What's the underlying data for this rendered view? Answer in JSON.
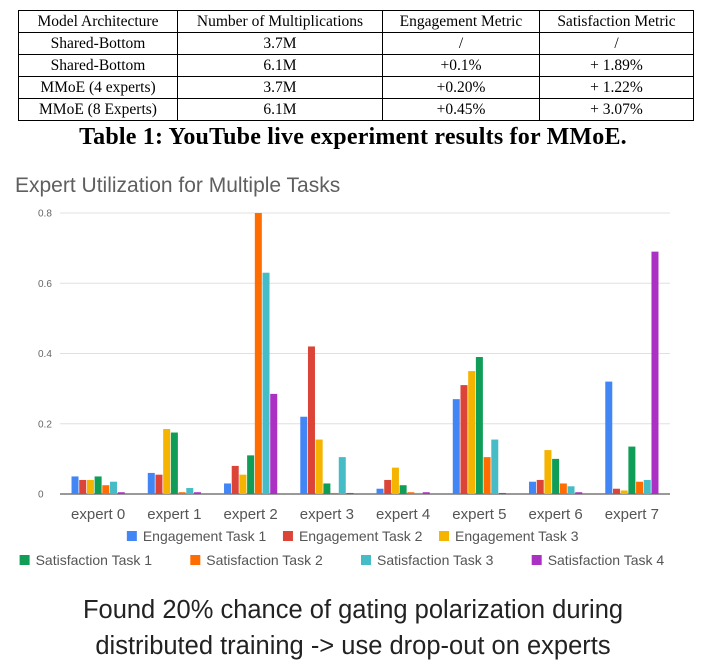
{
  "table": {
    "headers": [
      "Model Architecture",
      "Number of Multiplications",
      "Engagement Metric",
      "Satisfaction Metric"
    ],
    "rows": [
      [
        "Shared-Bottom",
        "3.7M",
        "/",
        "/"
      ],
      [
        "Shared-Bottom",
        "6.1M",
        "+0.1%",
        "+ 1.89%"
      ],
      [
        "MMoE (4 experts)",
        "3.7M",
        "+0.20%",
        "+ 1.22%"
      ],
      [
        "MMoE (8 Experts)",
        "6.1M",
        "+0.45%",
        "+ 3.07%"
      ]
    ],
    "caption": "Table 1: YouTube live experiment results for MMoE."
  },
  "chart_data": {
    "type": "bar",
    "title": "Expert Utilization for Multiple Tasks",
    "categories": [
      "expert 0",
      "expert 1",
      "expert 2",
      "expert 3",
      "expert 4",
      "expert 5",
      "expert 6",
      "expert 7"
    ],
    "ylim": [
      0,
      0.8
    ],
    "yticks": [
      "0",
      "0.2",
      "0.4",
      "0.6",
      "0.8"
    ],
    "grid": true,
    "legend_position": "bottom",
    "series": [
      {
        "name": "Engagement Task 1",
        "color": "#4285f4",
        "values": [
          0.05,
          0.06,
          0.03,
          0.22,
          0.015,
          0.27,
          0.035,
          0.32
        ]
      },
      {
        "name": "Engagement Task 2",
        "color": "#db4437",
        "values": [
          0.04,
          0.055,
          0.08,
          0.42,
          0.04,
          0.31,
          0.04,
          0.015
        ]
      },
      {
        "name": "Engagement Task 3",
        "color": "#f4b400",
        "values": [
          0.04,
          0.185,
          0.055,
          0.155,
          0.075,
          0.35,
          0.125,
          0.01
        ]
      },
      {
        "name": "Satisfaction Task 1",
        "color": "#0f9d58",
        "values": [
          0.05,
          0.175,
          0.11,
          0.03,
          0.025,
          0.39,
          0.1,
          0.135
        ]
      },
      {
        "name": "Satisfaction Task 2",
        "color": "#ff6d00",
        "values": [
          0.025,
          0.005,
          0.8,
          0.003,
          0.005,
          0.105,
          0.03,
          0.035
        ]
      },
      {
        "name": "Satisfaction Task 3",
        "color": "#46bdc6",
        "values": [
          0.035,
          0.017,
          0.63,
          0.105,
          0.003,
          0.155,
          0.022,
          0.04
        ]
      },
      {
        "name": "Satisfaction Task 4",
        "color": "#ab30c4",
        "values": [
          0.005,
          0.005,
          0.285,
          0.003,
          0.005,
          0.003,
          0.005,
          0.69
        ]
      }
    ]
  },
  "footnote": {
    "line1": "Found 20% chance of gating polarization during",
    "line2": "distributed training -> use drop-out on experts"
  }
}
